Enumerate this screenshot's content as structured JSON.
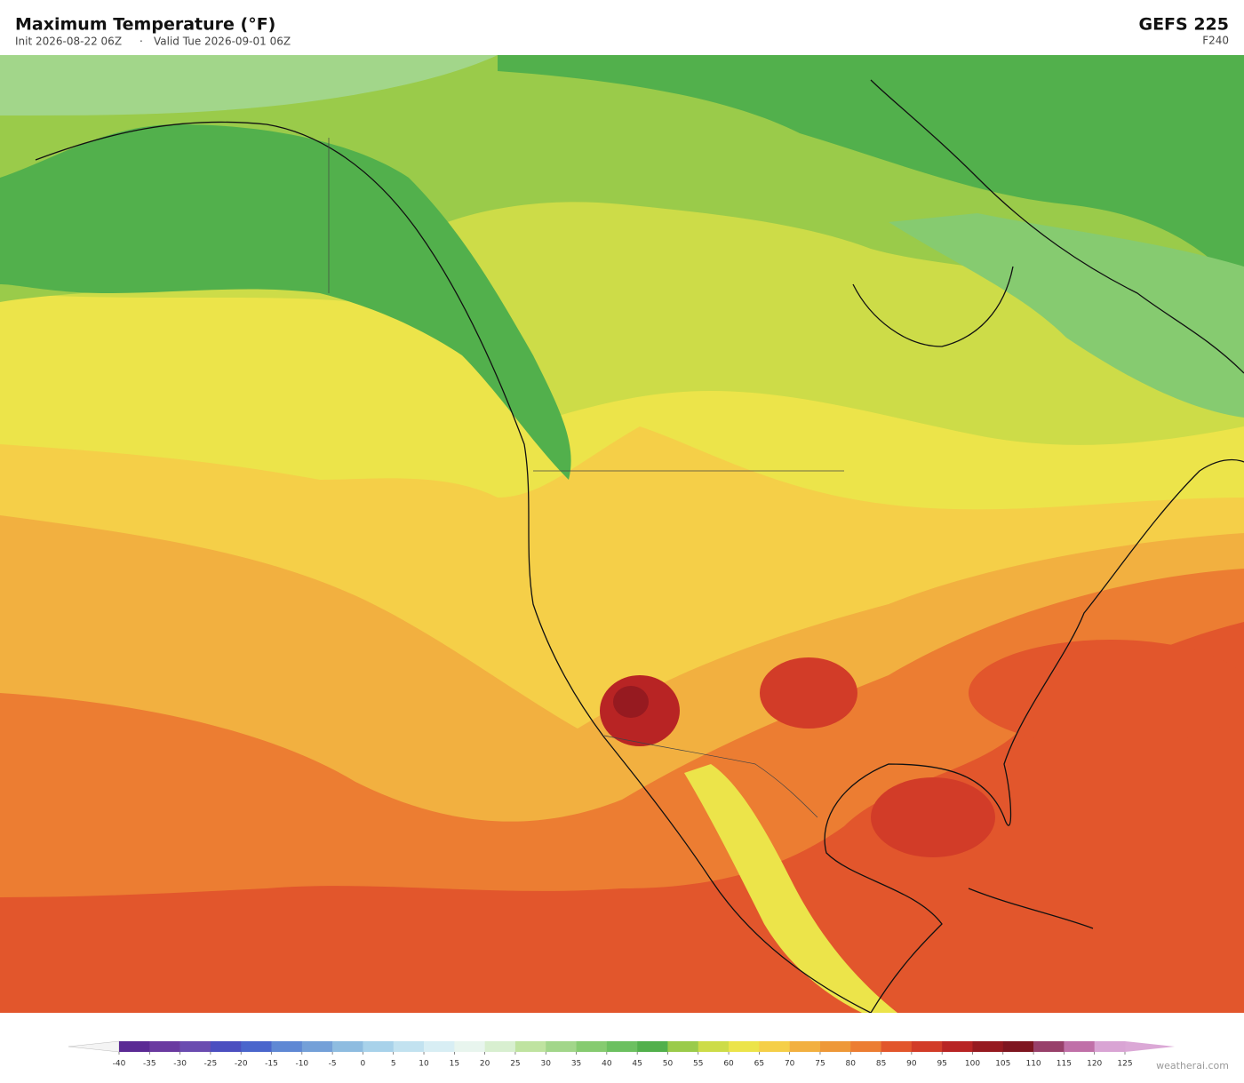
{
  "header": {
    "title": "Maximum Temperature  (°F)",
    "init": "Init 2026-08-22 06Z",
    "separator": "·",
    "valid": "Valid Tue 2026-09-01 06Z",
    "model": "GEFS  225",
    "forecast_hour": "F240"
  },
  "colorbar": {
    "ticks": [
      -40,
      -35,
      -30,
      -25,
      -20,
      -15,
      -10,
      -5,
      0,
      5,
      10,
      15,
      20,
      25,
      30,
      35,
      40,
      45,
      50,
      55,
      60,
      65,
      70,
      75,
      80,
      85,
      90,
      95,
      100,
      105,
      110,
      115,
      120,
      125
    ],
    "colors": [
      "#5b2a94",
      "#6a3aa0",
      "#6a4cb0",
      "#4b4fc0",
      "#4a66cc",
      "#5f88d4",
      "#74a0d8",
      "#8ebce0",
      "#a8d2ea",
      "#c2e2f0",
      "#d8eef4",
      "#e8f5ee",
      "#d8efd0",
      "#bfe3a0",
      "#a2d68a",
      "#86cb70",
      "#6cc060",
      "#52b04c",
      "#9acb4a",
      "#cddc48",
      "#ece44a",
      "#f5cf48",
      "#f2b040",
      "#ee9838",
      "#ec7d32",
      "#e2562c",
      "#d23c28",
      "#b82424",
      "#961a20",
      "#7e1620",
      "#98406a",
      "#c070a8",
      "#d9a4d4"
    ],
    "under_color": "#f4f4f4",
    "over_color": "#dba8d6"
  },
  "credit": "weatherai.com"
}
